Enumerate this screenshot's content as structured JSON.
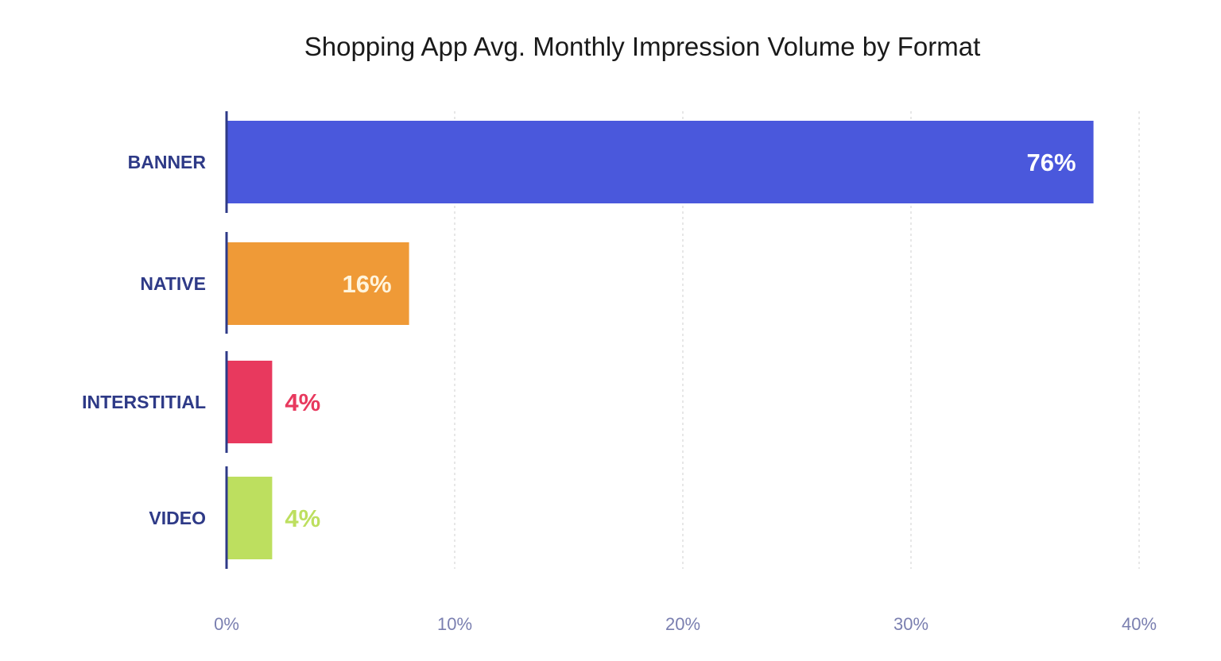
{
  "chart_data": {
    "type": "bar",
    "orientation": "horizontal",
    "title": "Shopping App Avg. Monthly Impression Volume by Format",
    "xlabel": "",
    "ylabel": "",
    "categories": [
      "BANNER",
      "NATIVE",
      "INTERSTITIAL",
      "VIDEO"
    ],
    "values": [
      76,
      16,
      4,
      4
    ],
    "value_labels": [
      "76%",
      "16%",
      "4%",
      "4%"
    ],
    "colors": [
      "#4a58dc",
      "#ef9a37",
      "#e8395e",
      "#bddf5f"
    ],
    "value_label_colors": [
      "#ffffff",
      "#fff4dc",
      "#e8395e",
      "#bddf5f"
    ],
    "x_ticks": [
      0,
      10,
      20,
      30,
      40
    ],
    "x_tick_labels": [
      "0%",
      "10%",
      "20%",
      "30%",
      "40%"
    ],
    "xlim": [
      0,
      40
    ],
    "grid": true,
    "legend": "none"
  }
}
